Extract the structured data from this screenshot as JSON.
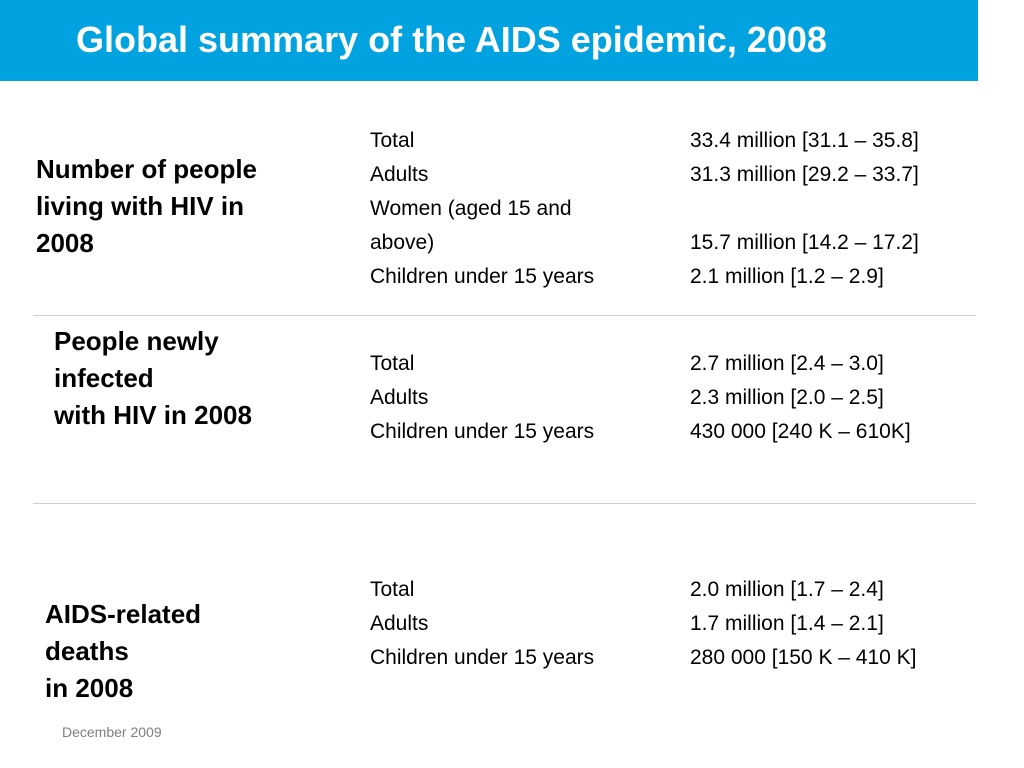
{
  "title": "Global summary of the AIDS epidemic, 2008",
  "sections": [
    {
      "heading": "Number of people\nliving with HIV in\n2008",
      "rows": [
        {
          "label": "Total",
          "value": "33.4 million [31.1 – 35.8]"
        },
        {
          "label": "Adults",
          "value": "31.3 million [29.2 – 33.7]"
        },
        {
          "label": "Women (aged 15 and",
          "value": ""
        },
        {
          "label": "above)",
          "value": "15.7 million [14.2 – 17.2]"
        },
        {
          "label": "Children under 15 years",
          "value": "2.1 million  [1.2 – 2.9]"
        }
      ]
    },
    {
      "heading": "People newly\ninfected\nwith HIV in 2008",
      "rows": [
        {
          "label": "Total",
          "value": "2.7 million [2.4 – 3.0]"
        },
        {
          "label": "Adults",
          "value": "2.3 million [2.0 – 2.5]"
        },
        {
          "label": "Children under 15 years",
          "value": "430 000 [240 K – 610K]"
        }
      ]
    },
    {
      "heading": "AIDS-related\ndeaths\nin 2008",
      "rows": [
        {
          "label": "Total",
          "value": "2.0 million [1.7 – 2.4]"
        },
        {
          "label": "Adults",
          "value": "1.7 million [1.4 – 2.1]"
        },
        {
          "label": "Children under 15 years",
          "value": "280 000 [150 K – 410 K]"
        }
      ]
    }
  ],
  "footer": "December 2009",
  "colors": {
    "title_bar": "#00A3E0",
    "title_text": "#ffffff",
    "footer_text": "#7f7f7f",
    "divider": "#d0d0d0"
  }
}
